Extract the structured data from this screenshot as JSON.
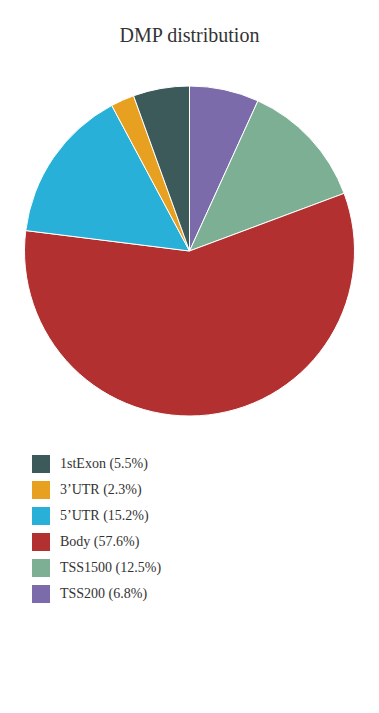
{
  "chart_data": {
    "type": "pie",
    "title": "DMP distribution",
    "categories": [
      "TSS200 (6.8%)",
      "TSS1500 (12.5%)",
      "Body (57.6%)",
      "5’UTR (15.2%)",
      "3’UTR (2.3%)",
      "1stExon (5.5%)"
    ],
    "values": [
      6.8,
      12.5,
      57.6,
      15.2,
      2.3,
      5.5
    ],
    "colors": [
      "#7b6bab",
      "#7daf94",
      "#b33030",
      "#29b0d8",
      "#e8a020",
      "#3d5a5a"
    ],
    "legend": "lower left"
  }
}
